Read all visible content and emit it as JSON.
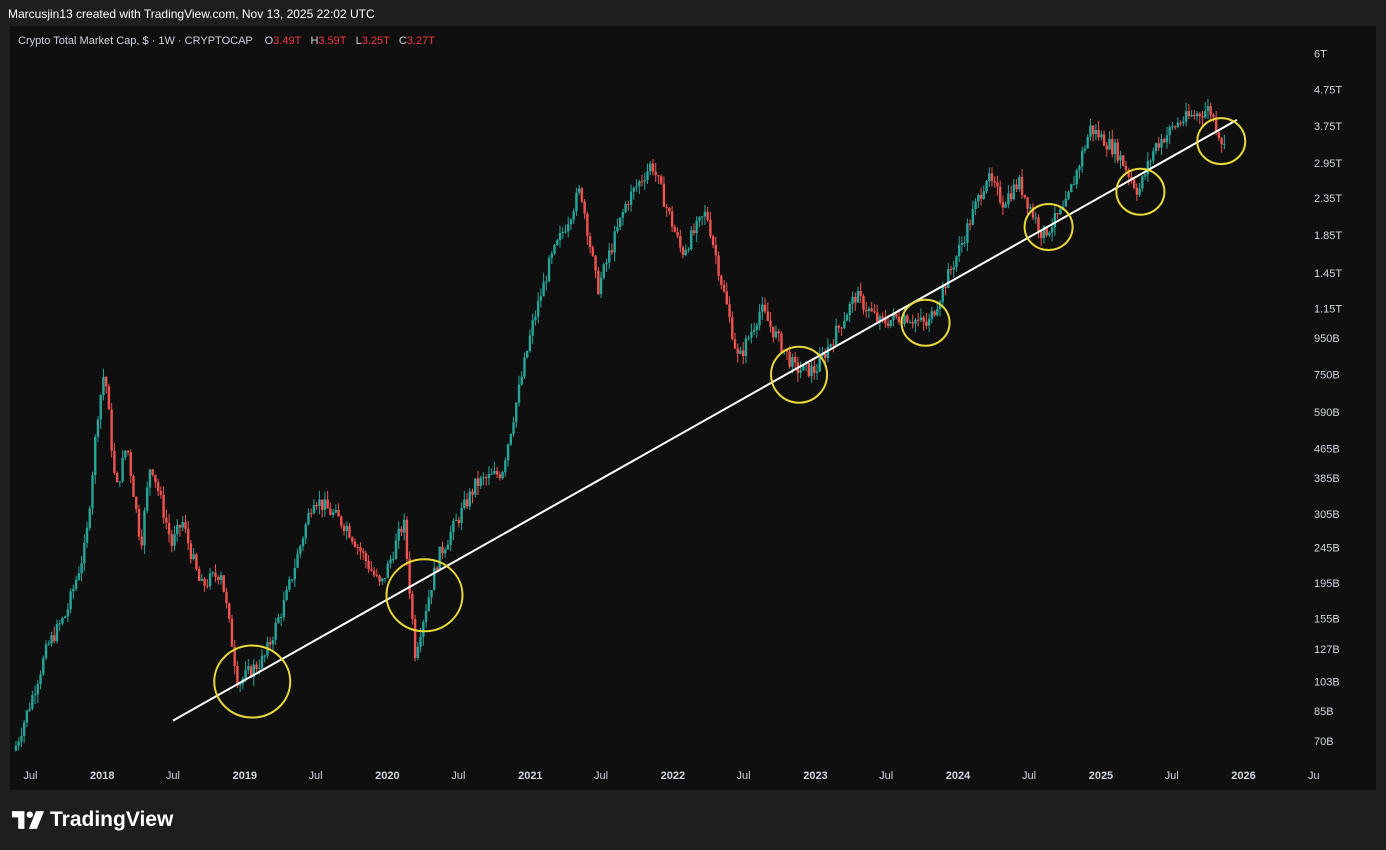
{
  "header": {
    "attribution": "Marcusjin13 created with TradingView.com, Nov 13, 2025 22:02 UTC"
  },
  "symbol": {
    "name": "Crypto Total Market Cap, $ · 1W · CRYPTOCAP",
    "o_label": "O",
    "o_value": "3.49T",
    "h_label": "H",
    "h_value": "3.59T",
    "l_label": "L",
    "l_value": "3.25T",
    "c_label": "C",
    "c_value": "3.27T"
  },
  "brand": {
    "name": "TradingView"
  },
  "colors": {
    "up": "#26a69a",
    "down": "#ef5350",
    "trendline": "#ffffff",
    "circles": "#e8d83a",
    "background": "#0f0f0f"
  },
  "chart_data": {
    "type": "candlestick",
    "y_scale": "log",
    "ylim": [
      62000000000,
      6800000000000
    ],
    "xlim": [
      "2017-05-20",
      "2026-06-10"
    ],
    "y_ticks": [
      {
        "value": 6000000000000.0,
        "label": "6T"
      },
      {
        "value": 4750000000000.0,
        "label": "4.75T"
      },
      {
        "value": 3750000000000.0,
        "label": "3.75T"
      },
      {
        "value": 2950000000000.0,
        "label": "2.95T"
      },
      {
        "value": 2350000000000.0,
        "label": "2.35T"
      },
      {
        "value": 1850000000000.0,
        "label": "1.85T"
      },
      {
        "value": 1450000000000.0,
        "label": "1.45T"
      },
      {
        "value": 1150000000000.0,
        "label": "1.15T"
      },
      {
        "value": 950000000000.0,
        "label": "950B"
      },
      {
        "value": 750000000000.0,
        "label": "750B"
      },
      {
        "value": 590000000000.0,
        "label": "590B"
      },
      {
        "value": 465000000000.0,
        "label": "465B"
      },
      {
        "value": 385000000000.0,
        "label": "385B"
      },
      {
        "value": 305000000000.0,
        "label": "305B"
      },
      {
        "value": 245000000000.0,
        "label": "245B"
      },
      {
        "value": 195000000000.0,
        "label": "195B"
      },
      {
        "value": 155000000000.0,
        "label": "155B"
      },
      {
        "value": 127000000000.0,
        "label": "127B"
      },
      {
        "value": 103000000000.0,
        "label": "103B"
      },
      {
        "value": 85000000000.0,
        "label": "85B"
      },
      {
        "value": 70000000000.0,
        "label": "70B"
      }
    ],
    "x_ticks": [
      {
        "date": "2017-07-01",
        "label": "Jul",
        "year": false
      },
      {
        "date": "2018-01-01",
        "label": "2018",
        "year": true
      },
      {
        "date": "2018-07-01",
        "label": "Jul",
        "year": false
      },
      {
        "date": "2019-01-01",
        "label": "2019",
        "year": true
      },
      {
        "date": "2019-07-01",
        "label": "Jul",
        "year": false
      },
      {
        "date": "2020-01-01",
        "label": "2020",
        "year": true
      },
      {
        "date": "2020-07-01",
        "label": "Jul",
        "year": false
      },
      {
        "date": "2021-01-01",
        "label": "2021",
        "year": true
      },
      {
        "date": "2021-07-01",
        "label": "Jul",
        "year": false
      },
      {
        "date": "2022-01-01",
        "label": "2022",
        "year": true
      },
      {
        "date": "2022-07-01",
        "label": "Jul",
        "year": false
      },
      {
        "date": "2023-01-01",
        "label": "2023",
        "year": true
      },
      {
        "date": "2023-07-01",
        "label": "Jul",
        "year": false
      },
      {
        "date": "2024-01-01",
        "label": "2024",
        "year": true
      },
      {
        "date": "2024-07-01",
        "label": "Jul",
        "year": false
      },
      {
        "date": "2025-01-01",
        "label": "2025",
        "year": true
      },
      {
        "date": "2025-07-01",
        "label": "Jul",
        "year": false
      },
      {
        "date": "2026-01-01",
        "label": "2026",
        "year": true
      },
      {
        "date": "2026-06-30",
        "label": "Ju",
        "year": false
      }
    ],
    "price_path": [
      {
        "date": "2017-05-25",
        "value": 68000000000.0
      },
      {
        "date": "2017-07-01",
        "value": 90000000000.0
      },
      {
        "date": "2017-08-15",
        "value": 130000000000.0
      },
      {
        "date": "2017-10-01",
        "value": 160000000000.0
      },
      {
        "date": "2017-11-20",
        "value": 250000000000.0
      },
      {
        "date": "2017-12-20",
        "value": 580000000000.0
      },
      {
        "date": "2018-01-07",
        "value": 780000000000.0
      },
      {
        "date": "2018-02-05",
        "value": 350000000000.0
      },
      {
        "date": "2018-03-05",
        "value": 480000000000.0
      },
      {
        "date": "2018-04-10",
        "value": 250000000000.0
      },
      {
        "date": "2018-05-05",
        "value": 430000000000.0
      },
      {
        "date": "2018-06-28",
        "value": 250000000000.0
      },
      {
        "date": "2018-07-25",
        "value": 290000000000.0
      },
      {
        "date": "2018-09-10",
        "value": 190000000000.0
      },
      {
        "date": "2018-11-01",
        "value": 210000000000.0
      },
      {
        "date": "2018-12-15",
        "value": 102000000000.0
      },
      {
        "date": "2019-02-20",
        "value": 120000000000.0
      },
      {
        "date": "2019-04-15",
        "value": 175000000000.0
      },
      {
        "date": "2019-06-26",
        "value": 340000000000.0
      },
      {
        "date": "2019-09-20",
        "value": 280000000000.0
      },
      {
        "date": "2019-12-15",
        "value": 190000000000.0
      },
      {
        "date": "2020-02-12",
        "value": 290000000000.0
      },
      {
        "date": "2020-03-12",
        "value": 125000000000.0
      },
      {
        "date": "2020-05-10",
        "value": 230000000000.0
      },
      {
        "date": "2020-08-15",
        "value": 370000000000.0
      },
      {
        "date": "2020-10-20",
        "value": 400000000000.0
      },
      {
        "date": "2021-01-08",
        "value": 1050000000000.0
      },
      {
        "date": "2021-02-20",
        "value": 1550000000000.0
      },
      {
        "date": "2021-05-10",
        "value": 2500000000000.0
      },
      {
        "date": "2021-06-22",
        "value": 1300000000000.0
      },
      {
        "date": "2021-09-05",
        "value": 2300000000000.0
      },
      {
        "date": "2021-11-08",
        "value": 2950000000000.0
      },
      {
        "date": "2022-01-24",
        "value": 1650000000000.0
      },
      {
        "date": "2022-03-28",
        "value": 2150000000000.0
      },
      {
        "date": "2022-06-18",
        "value": 820000000000.0
      },
      {
        "date": "2022-08-14",
        "value": 1150000000000.0
      },
      {
        "date": "2022-11-09",
        "value": 780000000000.0
      },
      {
        "date": "2023-01-01",
        "value": 770000000000.0
      },
      {
        "date": "2023-04-14",
        "value": 1250000000000.0
      },
      {
        "date": "2023-06-15",
        "value": 1050000000000.0
      },
      {
        "date": "2023-08-20",
        "value": 1100000000000.0
      },
      {
        "date": "2023-10-15",
        "value": 1030000000000.0
      },
      {
        "date": "2024-01-10",
        "value": 1750000000000.0
      },
      {
        "date": "2024-03-14",
        "value": 2700000000000.0
      },
      {
        "date": "2024-04-25",
        "value": 2300000000000.0
      },
      {
        "date": "2024-06-05",
        "value": 2600000000000.0
      },
      {
        "date": "2024-08-05",
        "value": 1850000000000.0
      },
      {
        "date": "2024-10-01",
        "value": 2200000000000.0
      },
      {
        "date": "2024-12-05",
        "value": 3700000000000.0
      },
      {
        "date": "2025-02-10",
        "value": 3200000000000.0
      },
      {
        "date": "2025-04-07",
        "value": 2450000000000.0
      },
      {
        "date": "2025-05-20",
        "value": 3300000000000.0
      },
      {
        "date": "2025-07-20",
        "value": 3850000000000.0
      },
      {
        "date": "2025-10-06",
        "value": 4200000000000.0
      },
      {
        "date": "2025-11-13",
        "value": 3270000000000.0
      }
    ],
    "trendline": [
      {
        "date": "2018-07-01",
        "value": 80000000000.0
      },
      {
        "date": "2025-12-15",
        "value": 3900000000000.0
      }
    ],
    "circles": [
      {
        "date": "2019-01-20",
        "value": 103000000000.0
      },
      {
        "date": "2020-04-05",
        "value": 180000000000.0
      },
      {
        "date": "2022-11-20",
        "value": 750000000000.0
      },
      {
        "date": "2023-10-10",
        "value": 1050000000000.0
      },
      {
        "date": "2024-08-20",
        "value": 1950000000000.0
      },
      {
        "date": "2025-04-12",
        "value": 2450000000000.0
      },
      {
        "date": "2025-11-05",
        "value": 3400000000000.0
      }
    ]
  }
}
